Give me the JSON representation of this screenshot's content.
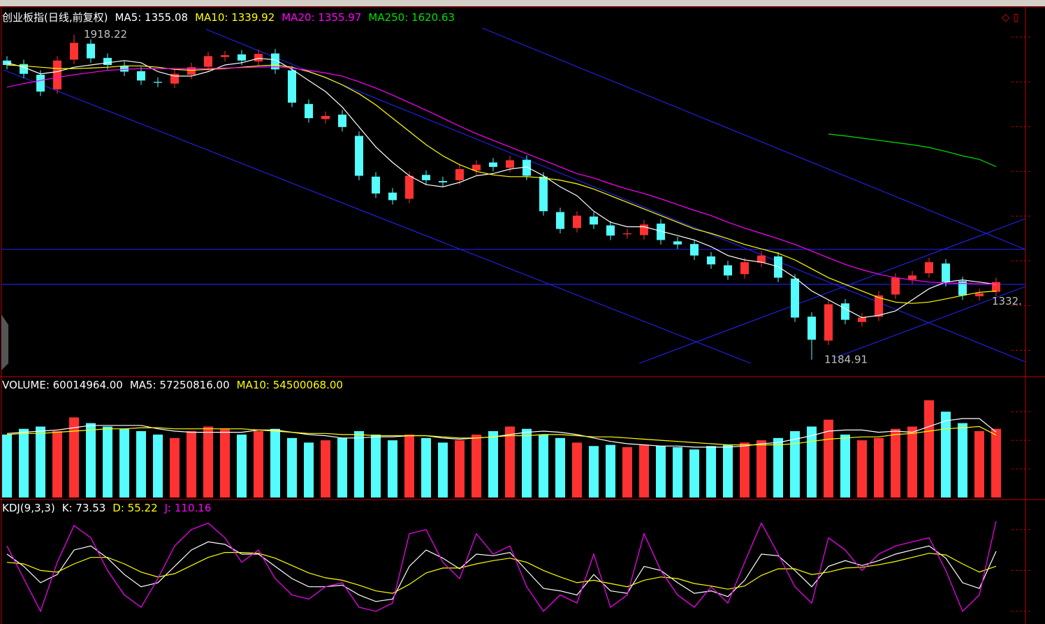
{
  "chart_data": [
    {
      "type": "candlestick",
      "title": "创业板指(日线,前复权)",
      "up_color": "#ff3232",
      "down_color": "#54fcfc",
      "open": [
        1860,
        1852,
        1828,
        1795,
        1862,
        1898,
        1866,
        1848,
        1836,
        1812,
        1808,
        1828,
        1846,
        1868,
        1874,
        1858,
        1876,
        1838,
        1762,
        1728,
        1738,
        1690,
        1598,
        1562,
        1548,
        1602,
        1588,
        1590,
        1612,
        1630,
        1618,
        1636,
        1598,
        1518,
        1482,
        1508,
        1488,
        1468,
        1466,
        1492,
        1452,
        1446,
        1418,
        1398,
        1378,
        1404,
        1418,
        1368,
        1282,
        1228,
        1312,
        1270,
        1282,
        1332,
        1366,
        1380,
        1402,
        1362,
        1328,
        1338
      ],
      "high": [
        1870,
        1862,
        1838,
        1870,
        1918.22,
        1908,
        1876,
        1858,
        1846,
        1822,
        1840,
        1855,
        1880,
        1882,
        1884,
        1885,
        1886,
        1848,
        1772,
        1745,
        1748,
        1700,
        1608,
        1572,
        1610,
        1612,
        1598,
        1625,
        1635,
        1640,
        1645,
        1646,
        1608,
        1528,
        1520,
        1518,
        1498,
        1480,
        1500,
        1502,
        1462,
        1456,
        1428,
        1408,
        1415,
        1430,
        1428,
        1378,
        1292,
        1320,
        1322,
        1290,
        1340,
        1380,
        1385,
        1415,
        1412,
        1372,
        1345,
        1370
      ],
      "low": [
        1840,
        1820,
        1780,
        1785,
        1852,
        1855,
        1840,
        1825,
        1805,
        1800,
        1798,
        1818,
        1836,
        1858,
        1850,
        1848,
        1830,
        1755,
        1720,
        1718,
        1700,
        1590,
        1550,
        1535,
        1538,
        1580,
        1575,
        1580,
        1602,
        1610,
        1608,
        1590,
        1510,
        1470,
        1472,
        1480,
        1455,
        1458,
        1456,
        1445,
        1435,
        1410,
        1390,
        1365,
        1368,
        1394,
        1360,
        1270,
        1184.91,
        1218,
        1265,
        1260,
        1272,
        1322,
        1356,
        1370,
        1350,
        1320,
        1318,
        1328
      ],
      "close": [
        1850,
        1830,
        1790,
        1860,
        1900,
        1865,
        1850,
        1835,
        1815,
        1810,
        1830,
        1845,
        1870,
        1872,
        1860,
        1875,
        1840,
        1765,
        1730,
        1735,
        1710,
        1600,
        1560,
        1545,
        1600,
        1590,
        1585,
        1615,
        1625,
        1620,
        1635,
        1600,
        1520,
        1480,
        1510,
        1490,
        1465,
        1470,
        1490,
        1455,
        1445,
        1420,
        1400,
        1375,
        1405,
        1420,
        1370,
        1280,
        1230,
        1310,
        1275,
        1280,
        1330,
        1370,
        1375,
        1405,
        1360,
        1330,
        1335,
        1360
      ],
      "series": [
        {
          "label": "MA5: 1355.08",
          "color": "#ffffff",
          "values": [
            1855,
            1845,
            1830,
            1835,
            1845,
            1850,
            1855,
            1860,
            1855,
            1835,
            1825,
            1825,
            1835,
            1850,
            1855,
            1865,
            1862,
            1840,
            1815,
            1790,
            1755,
            1710,
            1665,
            1630,
            1600,
            1580,
            1575,
            1585,
            1600,
            1605,
            1615,
            1620,
            1600,
            1575,
            1555,
            1520,
            1495,
            1485,
            1485,
            1475,
            1465,
            1455,
            1440,
            1420,
            1410,
            1405,
            1395,
            1370,
            1340,
            1320,
            1300,
            1280,
            1285,
            1295,
            1320,
            1345,
            1360,
            1365,
            1360,
            1355.08
          ]
        },
        {
          "label": "MA10: 1339.92",
          "color": "#ffff00",
          "values": [
            1850,
            1848,
            1845,
            1842,
            1842,
            1843,
            1845,
            1848,
            1848,
            1845,
            1840,
            1838,
            1840,
            1842,
            1845,
            1848,
            1850,
            1845,
            1835,
            1822,
            1805,
            1785,
            1760,
            1730,
            1700,
            1670,
            1645,
            1625,
            1610,
            1602,
            1598,
            1598,
            1595,
            1590,
            1582,
            1570,
            1555,
            1540,
            1525,
            1510,
            1495,
            1480,
            1470,
            1458,
            1445,
            1435,
            1425,
            1410,
            1390,
            1370,
            1355,
            1340,
            1325,
            1315,
            1312,
            1315,
            1322,
            1330,
            1337,
            1339.92
          ]
        },
        {
          "label": "MA20: 1355.97",
          "color": "#ff00ff",
          "values": [
            1800,
            1808,
            1815,
            1822,
            1828,
            1833,
            1838,
            1840,
            1842,
            1842,
            1842,
            1842,
            1842,
            1843,
            1844,
            1845,
            1846,
            1843,
            1838,
            1832,
            1825,
            1812,
            1798,
            1782,
            1765,
            1748,
            1730,
            1712,
            1695,
            1680,
            1665,
            1650,
            1635,
            1620,
            1605,
            1595,
            1582,
            1570,
            1560,
            1548,
            1535,
            1522,
            1510,
            1495,
            1482,
            1470,
            1458,
            1445,
            1430,
            1415,
            1400,
            1388,
            1378,
            1370,
            1365,
            1360,
            1358,
            1357,
            1356,
            1355.97
          ]
        },
        {
          "label": "MA250: 1620.63",
          "color": "#00e000",
          "values": [
            null,
            null,
            null,
            null,
            null,
            null,
            null,
            null,
            null,
            null,
            null,
            null,
            null,
            null,
            null,
            null,
            null,
            null,
            null,
            null,
            null,
            null,
            null,
            null,
            null,
            null,
            null,
            null,
            null,
            null,
            null,
            null,
            null,
            null,
            null,
            null,
            null,
            null,
            null,
            null,
            null,
            null,
            null,
            null,
            null,
            null,
            null,
            null,
            null,
            1694,
            1690,
            1685,
            1680,
            1675,
            1670,
            1664,
            1655,
            1645,
            1637,
            1620.63
          ]
        }
      ],
      "hlines": [
        1434,
        1355
      ],
      "max_label": "1918.22",
      "min_label": "1184.91",
      "price_tag": "1332.",
      "ylim": [
        1153,
        1973
      ],
      "yticks": [
        1913,
        1812,
        1711,
        1610,
        1509,
        1408,
        1307,
        1206
      ]
    },
    {
      "type": "bar",
      "title": "VOLUME: 60014964.00",
      "values": [
        55000000,
        60000000,
        62000000,
        58000000,
        70000000,
        65000000,
        62000000,
        60000000,
        58000000,
        55000000,
        52000000,
        58000000,
        62000000,
        60000000,
        55000000,
        58000000,
        60000000,
        52000000,
        48000000,
        50000000,
        52000000,
        58000000,
        55000000,
        50000000,
        55000000,
        52000000,
        48000000,
        50000000,
        55000000,
        58000000,
        62000000,
        60000000,
        55000000,
        52000000,
        48000000,
        45000000,
        46000000,
        44000000,
        46000000,
        45000000,
        44000000,
        42000000,
        45000000,
        46000000,
        48000000,
        50000000,
        52000000,
        58000000,
        62000000,
        68000000,
        55000000,
        50000000,
        52000000,
        60000000,
        62000000,
        85000000,
        75000000,
        65000000,
        58000000,
        60014964
      ],
      "series": [
        {
          "label": "MA5: 57250816.00",
          "color": "#ffffff",
          "values": [
            56000000,
            57000000,
            58000000,
            59000000,
            61000000,
            63000000,
            63000000,
            63000000,
            63000000,
            60000000,
            58000000,
            57000000,
            57000000,
            57000000,
            57000000,
            59000000,
            59000000,
            57000000,
            55000000,
            54000000,
            52000000,
            52000000,
            53000000,
            53000000,
            54000000,
            54000000,
            52000000,
            51000000,
            52000000,
            53000000,
            55000000,
            57000000,
            58000000,
            57000000,
            55000000,
            52000000,
            49000000,
            47000000,
            46000000,
            45000000,
            45000000,
            44000000,
            44000000,
            44000000,
            45000000,
            47000000,
            48000000,
            51000000,
            54000000,
            58000000,
            59000000,
            59000000,
            57000000,
            58000000,
            57000000,
            62000000,
            67000000,
            69000000,
            69000000,
            57250816
          ]
        },
        {
          "label": "MA10: 54500068.00",
          "color": "#ffff00",
          "values": [
            55000000,
            56000000,
            56000000,
            57000000,
            58000000,
            59000000,
            60000000,
            60000000,
            61000000,
            61000000,
            60000000,
            60000000,
            60000000,
            60000000,
            60000000,
            59000000,
            58000000,
            57000000,
            56000000,
            56000000,
            55000000,
            55000000,
            54000000,
            54000000,
            54000000,
            54000000,
            53000000,
            52000000,
            52000000,
            53000000,
            54000000,
            54000000,
            55000000,
            55000000,
            54000000,
            53000000,
            53000000,
            52000000,
            51000000,
            50000000,
            49000000,
            48000000,
            47000000,
            46000000,
            46000000,
            46000000,
            46000000,
            47000000,
            49000000,
            51000000,
            52000000,
            53000000,
            53000000,
            55000000,
            56000000,
            58000000,
            60000000,
            61000000,
            62000000,
            54500068
          ]
        }
      ],
      "ylim": [
        0,
        105000000
      ],
      "yticks": [
        25000000,
        50000000,
        75000000
      ]
    },
    {
      "type": "line",
      "title": "KDJ(9,3,3)",
      "series": [
        {
          "label": "K: 73.53",
          "color": "#ffffff",
          "values": [
            70,
            55,
            35,
            45,
            75,
            80,
            65,
            45,
            30,
            35,
            55,
            75,
            85,
            82,
            70,
            70,
            55,
            40,
            30,
            30,
            32,
            20,
            12,
            15,
            55,
            75,
            65,
            52,
            70,
            68,
            72,
            50,
            28,
            25,
            20,
            45,
            25,
            22,
            55,
            50,
            35,
            22,
            25,
            18,
            38,
            70,
            68,
            50,
            30,
            55,
            62,
            56,
            62,
            70,
            75,
            80,
            65,
            35,
            28,
            73.53
          ]
        },
        {
          "label": "D: 55.22",
          "color": "#ffff00",
          "values": [
            60,
            58,
            50,
            48,
            58,
            66,
            66,
            58,
            48,
            42,
            46,
            56,
            66,
            72,
            72,
            71,
            65,
            56,
            47,
            41,
            38,
            32,
            25,
            22,
            33,
            47,
            53,
            53,
            58,
            62,
            65,
            60,
            50,
            42,
            35,
            38,
            34,
            30,
            38,
            42,
            40,
            34,
            31,
            27,
            31,
            44,
            52,
            52,
            45,
            48,
            53,
            54,
            57,
            61,
            66,
            71,
            69,
            58,
            48,
            55.22
          ]
        },
        {
          "label": "J: 110.16",
          "color": "#ff00ff",
          "values": [
            80,
            40,
            0,
            60,
            105,
            90,
            50,
            20,
            5,
            40,
            80,
            100,
            108,
            90,
            60,
            75,
            40,
            20,
            15,
            30,
            35,
            5,
            0,
            10,
            95,
            100,
            60,
            40,
            95,
            70,
            80,
            30,
            0,
            20,
            10,
            70,
            5,
            20,
            95,
            50,
            20,
            5,
            30,
            10,
            60,
            108,
            70,
            30,
            10,
            90,
            75,
            50,
            70,
            80,
            85,
            90,
            50,
            0,
            20,
            110.16
          ]
        }
      ],
      "ylim": [
        -13,
        135
      ],
      "yticks": [
        0,
        50,
        100
      ]
    }
  ]
}
